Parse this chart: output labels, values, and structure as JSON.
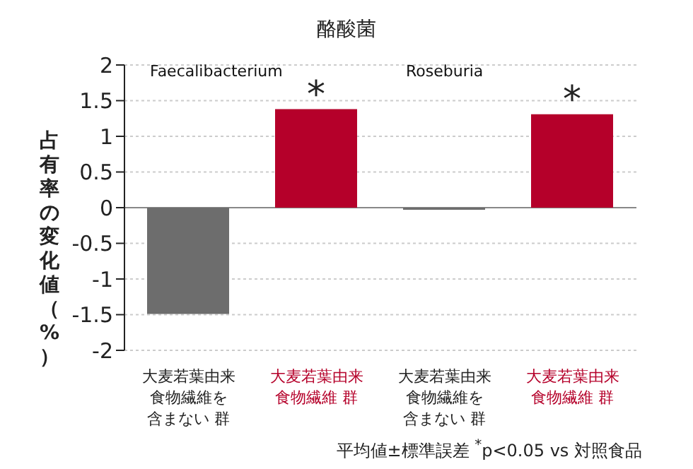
{
  "chart_data": {
    "type": "bar",
    "title": "酪酸菌",
    "ylabel": "占有率の変化値（%）",
    "categories": [
      "大麦若葉由来食物繊維を含まない 群",
      "大麦若葉由来食物繊維 群",
      "大麦若葉由来食物繊維を含まない 群",
      "大麦若葉由来食物繊維 群"
    ],
    "values": [
      -1.49,
      1.38,
      -0.03,
      1.31
    ],
    "colors": [
      "#6d6d6d",
      "#b5002a",
      "#6d6d6d",
      "#b5002a"
    ],
    "value_labels": [
      null,
      "*",
      null,
      "*"
    ],
    "ylim": [
      -2,
      2
    ],
    "yticks": [
      -2,
      -1.5,
      -1,
      -0.5,
      0,
      0.5,
      1,
      1.5,
      2
    ],
    "grid": "y",
    "legend": false,
    "annotations": [
      "Faecalibacterium",
      "Roseburia",
      "平均値±標準誤差 $^{*}$p<0.05 vs 対照食品"
    ]
  }
}
